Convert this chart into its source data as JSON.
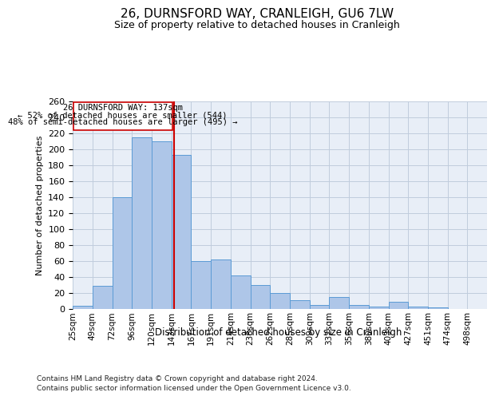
{
  "title": "26, DURNSFORD WAY, CRANLEIGH, GU6 7LW",
  "subtitle": "Size of property relative to detached houses in Cranleigh",
  "xlabel": "Distribution of detached houses by size in Cranleigh",
  "ylabel": "Number of detached properties",
  "categories": [
    "25sqm",
    "49sqm",
    "72sqm",
    "96sqm",
    "120sqm",
    "143sqm",
    "167sqm",
    "191sqm",
    "214sqm",
    "238sqm",
    "262sqm",
    "285sqm",
    "309sqm",
    "332sqm",
    "356sqm",
    "380sqm",
    "403sqm",
    "427sqm",
    "451sqm",
    "474sqm",
    "498sqm"
  ],
  "values": [
    4,
    29,
    140,
    215,
    210,
    193,
    60,
    62,
    42,
    30,
    20,
    11,
    5,
    15,
    5,
    3,
    9,
    3,
    2,
    0,
    0
  ],
  "bar_color": "#aec6e8",
  "bar_edge_color": "#5b9bd5",
  "property_label": "26 DURNSFORD WAY: 137sqm",
  "annotation_line1": "← 52% of detached houses are smaller (544)",
  "annotation_line2": "48% of semi-detached houses are larger (495) →",
  "vline_color": "#cc0000",
  "annotation_box_color": "#ffffff",
  "annotation_box_edge": "#cc0000",
  "footer1": "Contains HM Land Registry data © Crown copyright and database right 2024.",
  "footer2": "Contains public sector information licensed under the Open Government Licence v3.0.",
  "ylim": [
    0,
    260
  ],
  "yticks": [
    0,
    20,
    40,
    60,
    80,
    100,
    120,
    140,
    160,
    180,
    200,
    220,
    240,
    260
  ],
  "grid_color": "#c0ccdd",
  "bg_color": "#e8eef7",
  "bar_width": 1.0,
  "title_fontsize": 11,
  "subtitle_fontsize": 9,
  "ylabel_fontsize": 8,
  "xlabel_fontsize": 8.5,
  "tick_fontsize": 7.5,
  "footer_fontsize": 6.5
}
